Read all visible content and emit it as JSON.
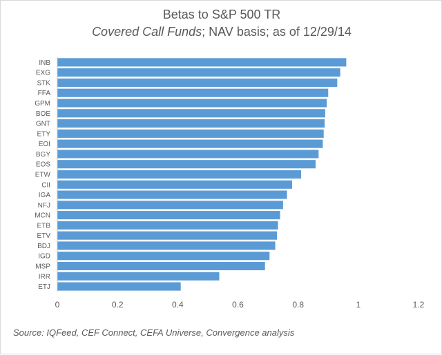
{
  "chart_data": {
    "type": "bar",
    "orientation": "horizontal",
    "title": "Betas to S&P 500 TR",
    "subtitle_italic": "Covered Call Funds",
    "subtitle_rest": "; NAV basis; as of 12/29/14",
    "categories": [
      "INB",
      "EXG",
      "STK",
      "FFA",
      "GPM",
      "BOE",
      "GNT",
      "ETY",
      "EOI",
      "BGY",
      "EOS",
      "ETW",
      "CII",
      "IGA",
      "NFJ",
      "MCN",
      "ETB",
      "ETV",
      "BDJ",
      "IGD",
      "MSP",
      "IRR",
      "ETJ"
    ],
    "values": [
      0.96,
      0.94,
      0.93,
      0.9,
      0.895,
      0.89,
      0.888,
      0.885,
      0.882,
      0.868,
      0.858,
      0.81,
      0.78,
      0.763,
      0.75,
      0.74,
      0.733,
      0.73,
      0.724,
      0.705,
      0.69,
      0.538,
      0.41
    ],
    "xlim": [
      0,
      1.2
    ],
    "xticks": [
      "0",
      "0.2",
      "0.4",
      "0.6",
      "0.8",
      "1",
      "1.2"
    ],
    "grid": false,
    "bar_color": "#5b9bd5",
    "source": "Source:  IQFeed, CEF Connect, CEFA Universe, Convergence analysis"
  }
}
